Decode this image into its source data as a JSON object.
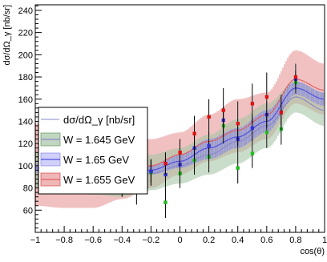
{
  "chart_data": {
    "type": "line",
    "xlabel": "cos(θ)",
    "ylabel": "dσ/dΩ_γ [nb/sr]",
    "xlim": [
      -1,
      1
    ],
    "ylim": [
      40,
      245
    ],
    "x_ticks": [
      -1,
      -0.8,
      -0.6,
      -0.4,
      -0.2,
      0,
      0.2,
      0.4,
      0.6,
      0.8,
      1
    ],
    "x_tick_labels": [
      "−1",
      "−0.8",
      "−0.6",
      "−0.4",
      "−0.2",
      "0",
      "0.2",
      "0.4",
      "0.6",
      "0.8",
      "1"
    ],
    "y_ticks": [
      60,
      80,
      100,
      120,
      140,
      160,
      180,
      200,
      220,
      240
    ],
    "y_tick_labels": [
      "60",
      "80",
      "100",
      "120",
      "140",
      "160",
      "180",
      "200",
      "220",
      "240"
    ],
    "legend": {
      "placement": "center-left",
      "title": "dσ/dΩ_γ [nb/sr]",
      "entries": [
        "W = 1.645 GeV",
        "W = 1.65 GeV",
        "W = 1.655 GeV"
      ]
    },
    "series": [
      {
        "name": "W = 1.645 GeV",
        "color": "#8a8ac8",
        "band_color": "#4c8a4c",
        "x": [
          -1,
          -0.8,
          -0.6,
          -0.4,
          -0.2,
          0,
          0.2,
          0.4,
          0.6,
          0.8,
          1
        ],
        "y": [
          96,
          93,
          90,
          90,
          93,
          100,
          110,
          122,
          136,
          162,
          150
        ],
        "lower": [
          80,
          77,
          74,
          72,
          78,
          84,
          92,
          102,
          116,
          148,
          136
        ],
        "upper": [
          112,
          109,
          106,
          108,
          110,
          116,
          128,
          142,
          156,
          176,
          166
        ]
      },
      {
        "name": "W = 1.65 GeV",
        "color": "#5050e0",
        "band_color": "#7878f0",
        "x": [
          -1,
          -0.8,
          -0.6,
          -0.4,
          -0.2,
          0,
          0.2,
          0.4,
          0.6,
          0.8,
          1
        ],
        "y": [
          98,
          95,
          92,
          92,
          96,
          104,
          116,
          126,
          140,
          170,
          160
        ],
        "lower": [
          94,
          91,
          88,
          88,
          92,
          98,
          106,
          116,
          130,
          164,
          154
        ],
        "upper": [
          102,
          99,
          96,
          96,
          100,
          110,
          124,
          134,
          150,
          176,
          166
        ]
      },
      {
        "name": "W = 1.655 GeV",
        "color": "#e06060",
        "band_color": "#d03030",
        "x": [
          -1,
          -0.8,
          -0.6,
          -0.4,
          -0.2,
          0,
          0.2,
          0.4,
          0.6,
          0.8,
          1
        ],
        "y": [
          100,
          97,
          95,
          96,
          100,
          110,
          122,
          132,
          146,
          178,
          168
        ],
        "lower": [
          64,
          62,
          62,
          70,
          80,
          92,
          104,
          112,
          124,
          156,
          146
        ],
        "upper": [
          138,
          132,
          126,
          122,
          124,
          130,
          146,
          160,
          166,
          204,
          192
        ]
      }
    ],
    "points": [
      {
        "name": "W = 1.645 GeV",
        "color": "#22bb22",
        "x": [
          -0.5,
          -0.4,
          -0.3,
          -0.2,
          -0.1,
          0.0,
          0.1,
          0.2,
          0.3,
          0.4,
          0.5,
          0.6,
          0.7,
          0.8
        ],
        "y": [
          92,
          87,
          79,
          94,
          67,
          93,
          105,
          108,
          136,
          98,
          111,
          130,
          133,
          175
        ],
        "err": [
          10,
          15,
          14,
          12,
          14,
          13,
          13,
          14,
          16,
          14,
          13,
          14,
          14,
          10
        ]
      },
      {
        "name": "W = 1.65 GeV",
        "color": "#3333cc",
        "x": [
          -0.5,
          -0.4,
          -0.3,
          -0.2,
          -0.1,
          0.0,
          0.1,
          0.2,
          0.3,
          0.4,
          0.5,
          0.6,
          0.7,
          0.8
        ],
        "y": [
          96,
          92,
          91,
          95,
          92,
          101,
          116,
          118,
          141,
          124,
          134,
          146,
          148,
          178
        ],
        "err": [
          8,
          10,
          10,
          10,
          11,
          11,
          12,
          12,
          12,
          12,
          12,
          12,
          12,
          8
        ]
      },
      {
        "name": "W = 1.655 GeV",
        "color": "#dd1111",
        "x": [
          -0.1,
          0.0,
          0.1,
          0.2,
          0.3,
          0.4,
          0.5,
          0.6,
          0.7,
          0.8
        ],
        "y": [
          102,
          112,
          129,
          144,
          150,
          138,
          156,
          162,
          148,
          180
        ],
        "err": [
          10,
          12,
          16,
          16,
          20,
          20,
          18,
          22,
          16,
          12
        ]
      }
    ]
  }
}
